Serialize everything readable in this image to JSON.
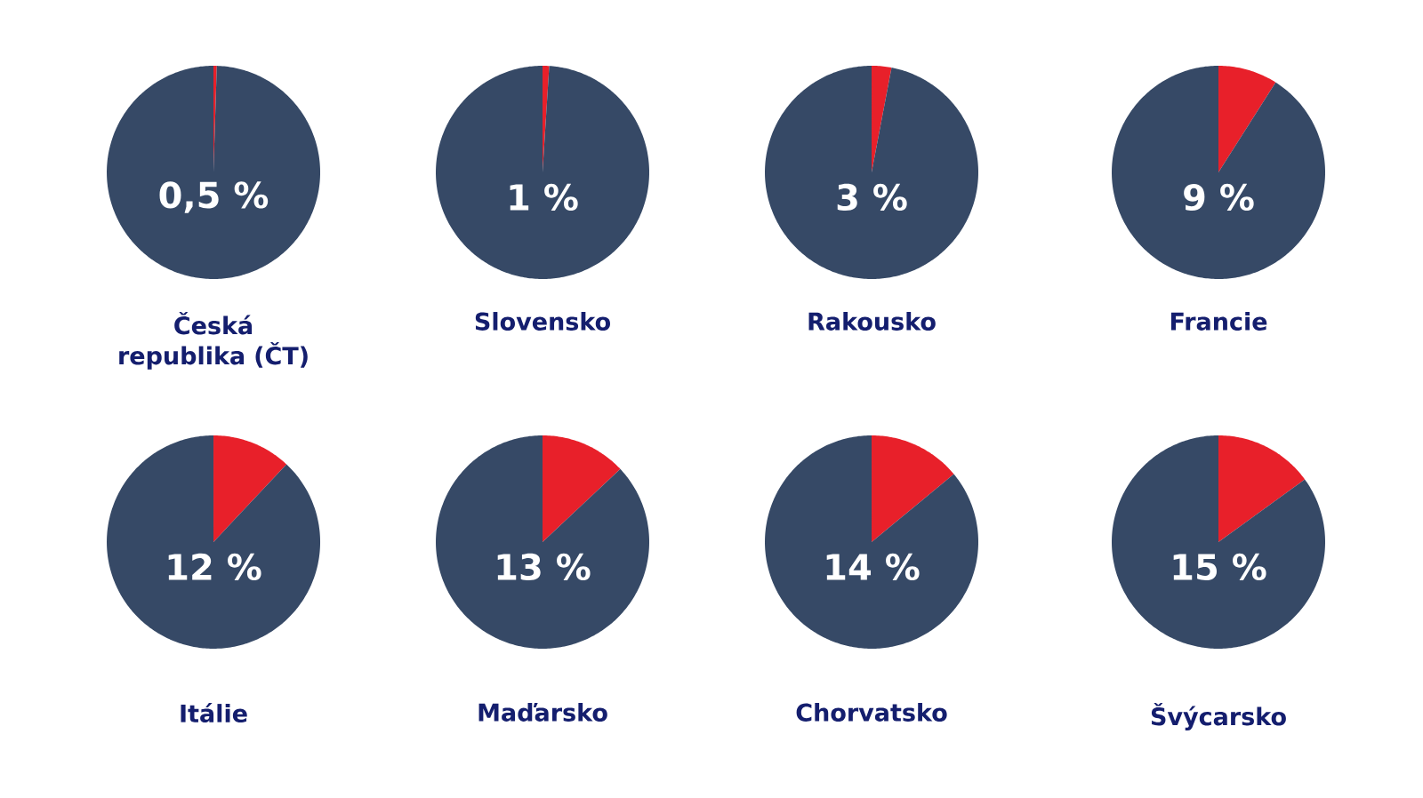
{
  "chart_data": [
    {
      "type": "pie",
      "title": "Česká republika (ČT)",
      "categories": [
        null,
        null
      ],
      "values": [
        0.5,
        99.5
      ],
      "colors": [
        "#e8202a",
        "#364966"
      ],
      "annotations": [
        "0,5 %"
      ]
    },
    {
      "type": "pie",
      "title": "Slovensko",
      "categories": [
        null,
        null
      ],
      "values": [
        1,
        99
      ],
      "colors": [
        "#e8202a",
        "#364966"
      ],
      "annotations": [
        "1 %"
      ]
    },
    {
      "type": "pie",
      "title": "Rakousko",
      "categories": [
        null,
        null
      ],
      "values": [
        3,
        97
      ],
      "colors": [
        "#e8202a",
        "#364966"
      ],
      "annotations": [
        "3 %"
      ]
    },
    {
      "type": "pie",
      "title": "Francie",
      "categories": [
        null,
        null
      ],
      "values": [
        9,
        91
      ],
      "colors": [
        "#e8202a",
        "#364966"
      ],
      "annotations": [
        "9 %"
      ]
    },
    {
      "type": "pie",
      "title": "Itálie",
      "categories": [
        null,
        null
      ],
      "values": [
        12,
        88
      ],
      "colors": [
        "#e8202a",
        "#364966"
      ],
      "annotations": [
        "12 %"
      ]
    },
    {
      "type": "pie",
      "title": "Maďarsko",
      "categories": [
        null,
        null
      ],
      "values": [
        13,
        87
      ],
      "colors": [
        "#e8202a",
        "#364966"
      ],
      "annotations": [
        "13 %"
      ]
    },
    {
      "type": "pie",
      "title": "Chorvatsko",
      "categories": [
        null,
        null
      ],
      "values": [
        14,
        86
      ],
      "colors": [
        "#e8202a",
        "#364966"
      ],
      "annotations": [
        "14 %"
      ]
    },
    {
      "type": "pie",
      "title": "Švýcarsko",
      "categories": [
        null,
        null
      ],
      "values": [
        15,
        85
      ],
      "colors": [
        "#e8202a",
        "#364966"
      ],
      "annotations": [
        "15 %"
      ]
    }
  ]
}
